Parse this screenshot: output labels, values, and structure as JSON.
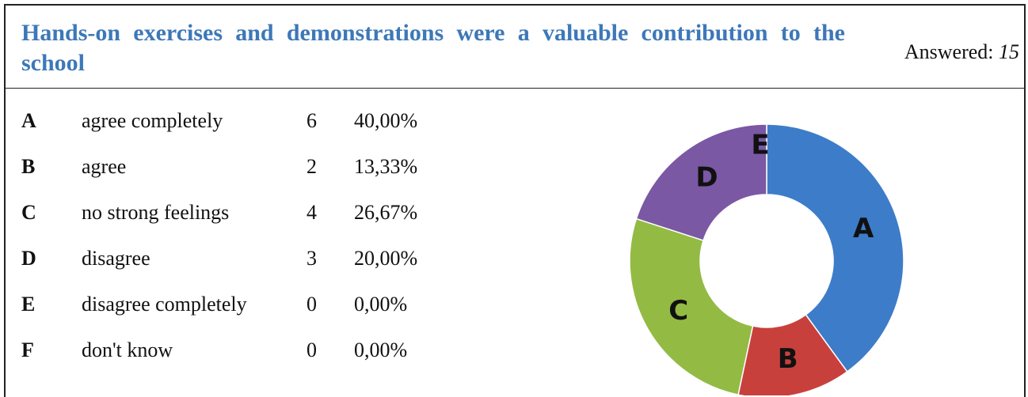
{
  "header": {
    "title": "Hands-on exercises and demonstrations were a valuable contribution to the school",
    "answered_label": "Answered:",
    "answered": "15"
  },
  "table": {
    "rows": [
      [
        "A",
        "agree completely",
        "6",
        "40,00%"
      ],
      [
        "B",
        "agree",
        "2",
        "13,33%"
      ],
      [
        "C",
        "no strong feelings",
        "4",
        "26,67%"
      ],
      [
        "D",
        "disagree",
        "3",
        "20,00%"
      ],
      [
        "E",
        "disagree completely",
        "0",
        "0,00%"
      ],
      [
        "F",
        "don't know",
        "0",
        "0,00%"
      ]
    ]
  },
  "chart_data": {
    "type": "donut",
    "categories": [
      "A",
      "B",
      "C",
      "D",
      "E"
    ],
    "values": [
      6,
      2,
      4,
      3,
      0
    ],
    "colors": [
      "#3d7cc9",
      "#c8403c",
      "#93bb44",
      "#7a58a4",
      "#3aa0c0"
    ]
  }
}
